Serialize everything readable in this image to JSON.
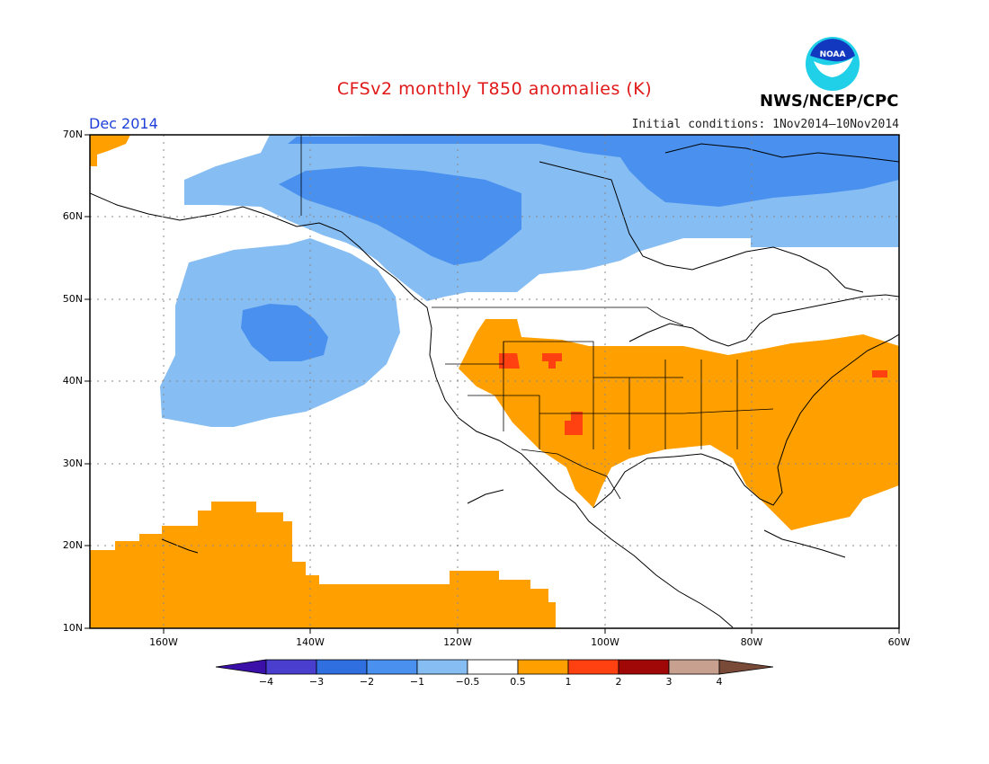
{
  "title": "CFSv2 monthly T850 anomalies (K)",
  "month": "Dec 2014",
  "initial_conditions": "Initial conditions: 1Nov2014–10Nov2014",
  "agency": "NWS/NCEP/CPC",
  "logo_text": "NOAA",
  "map": {
    "lat_labels": [
      "70N",
      "60N",
      "50N",
      "40N",
      "30N",
      "20N",
      "10N"
    ],
    "lon_labels": [
      "160W",
      "140W",
      "120W",
      "100W",
      "80W",
      "60W"
    ]
  },
  "legend": {
    "labels": [
      "−4",
      "−3",
      "−2",
      "−1",
      "−0.5",
      "0.5",
      "1",
      "2",
      "3",
      "4"
    ],
    "colors": [
      "#3a10a8",
      "#4a3ecf",
      "#2f6fdf",
      "#4a90ee",
      "#86bdf3",
      "#ffffff",
      "#ffa000",
      "#ff4010",
      "#a00808",
      "#c8a090",
      "#7a4a38"
    ]
  },
  "colors": {
    "title": "#e01818",
    "month": "#1f3fd8",
    "anomaly_neg_light": "#86bdf3",
    "anomaly_neg_mid": "#4a90ee",
    "anomaly_pos_1": "#ffa000",
    "anomaly_pos_2": "#ff4010"
  }
}
